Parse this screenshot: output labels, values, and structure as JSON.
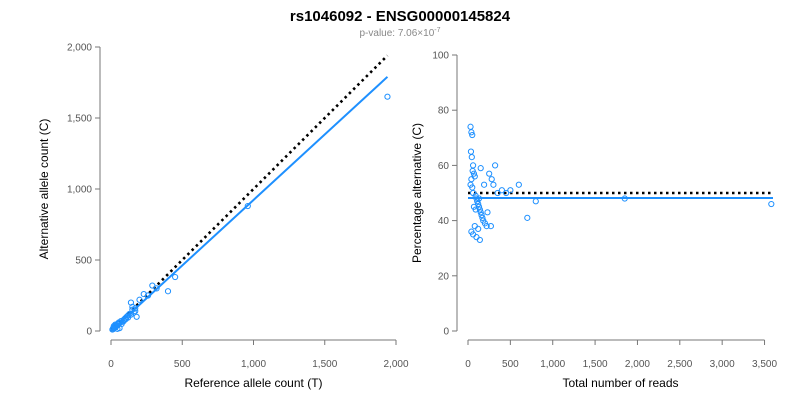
{
  "title": "rs1046092 - ENSG00000145824",
  "subtitle": {
    "prefix": "p-value: 7.06×10",
    "exponent": "-7"
  },
  "colors": {
    "points": "#1e90ff",
    "fit_line": "#1e90ff",
    "reference_line": "#000000",
    "axis": "#777777",
    "tick_text": "#555555"
  },
  "chart_data": [
    {
      "type": "scatter",
      "title": "",
      "xlabel": "Reference allele count (T)",
      "ylabel": "Alternative allele count (C)",
      "xlim": [
        0,
        2000
      ],
      "ylim": [
        0,
        2000
      ],
      "xticks": [
        0,
        500,
        1000,
        1500,
        2000
      ],
      "xtick_labels": [
        "0",
        "500",
        "1,000",
        "1,500",
        "2,000"
      ],
      "yticks": [
        0,
        500,
        1000,
        1500,
        2000
      ],
      "ytick_labels": [
        "0",
        "500",
        "1,000",
        "1,500",
        "2,000"
      ],
      "reference_line": {
        "x": [
          0,
          1940
        ],
        "y": [
          0,
          1940
        ],
        "style": "dotted"
      },
      "fit_line": {
        "x": [
          0,
          1940
        ],
        "y": [
          0,
          1790
        ],
        "style": "solid"
      },
      "points": {
        "x": [
          10,
          15,
          20,
          25,
          30,
          35,
          40,
          45,
          50,
          55,
          60,
          70,
          80,
          90,
          100,
          110,
          120,
          130,
          140,
          150,
          160,
          170,
          180,
          200,
          230,
          260,
          290,
          320,
          400,
          450,
          960,
          1940,
          30,
          60,
          90,
          120,
          150,
          20,
          45,
          75,
          105,
          140,
          170
        ],
        "y": [
          10,
          20,
          15,
          30,
          25,
          40,
          35,
          50,
          45,
          60,
          55,
          70,
          65,
          80,
          90,
          100,
          110,
          120,
          200,
          150,
          130,
          160,
          100,
          220,
          260,
          250,
          320,
          300,
          280,
          380,
          880,
          1650,
          45,
          20,
          70,
          95,
          170,
          35,
          15,
          50,
          85,
          115,
          140
        ]
      }
    },
    {
      "type": "scatter",
      "title": "",
      "xlabel": "Total number of reads",
      "ylabel": "Percentage alternative (C)",
      "xlim": [
        0,
        3600
      ],
      "ylim": [
        0,
        100
      ],
      "xticks": [
        0,
        500,
        1000,
        1500,
        2000,
        2500,
        3000,
        3500
      ],
      "xtick_labels": [
        "0",
        "500",
        "1,000",
        "1,500",
        "2,000",
        "2,500",
        "3,000",
        "3,500"
      ],
      "yticks": [
        0,
        20,
        40,
        60,
        80,
        100
      ],
      "ytick_labels": [
        "0",
        "20",
        "40",
        "60",
        "80",
        "100"
      ],
      "reference_line": {
        "x": [
          0,
          3600
        ],
        "y": [
          50,
          50
        ],
        "style": "dotted"
      },
      "fit_line": {
        "x": [
          0,
          3600
        ],
        "y": [
          48.2,
          48.2
        ],
        "style": "solid"
      },
      "points": {
        "x": [
          30,
          40,
          50,
          35,
          45,
          60,
          55,
          70,
          80,
          40,
          30,
          50,
          60,
          90,
          100,
          110,
          120,
          130,
          140,
          150,
          160,
          170,
          180,
          200,
          220,
          250,
          280,
          300,
          320,
          350,
          400,
          450,
          500,
          600,
          700,
          800,
          1850,
          3580,
          40,
          60,
          80,
          100,
          120,
          140,
          70,
          90,
          110,
          130,
          150,
          190,
          230,
          270
        ],
        "y": [
          74,
          72,
          71,
          65,
          63,
          60,
          58,
          57,
          56,
          55,
          53,
          52,
          50,
          49,
          48,
          47,
          46,
          45,
          44,
          43,
          42,
          41,
          40,
          39,
          38,
          57,
          55,
          53,
          60,
          50,
          51,
          50,
          51,
          53,
          41,
          47,
          48,
          46,
          36,
          35,
          38,
          34,
          37,
          33,
          45,
          44,
          47,
          48,
          59,
          53,
          43,
          38
        ]
      }
    }
  ]
}
